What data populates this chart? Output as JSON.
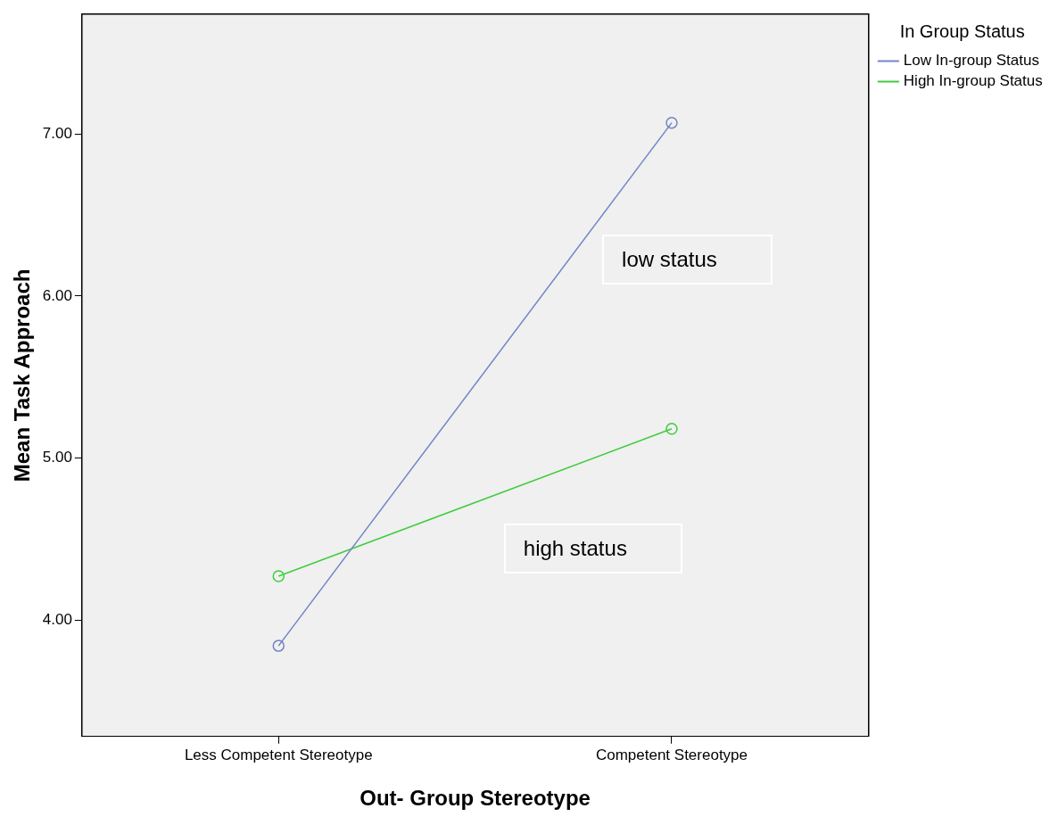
{
  "chart_data": {
    "type": "line",
    "xlabel": "Out- Group Stereotype",
    "ylabel": "Mean Task Approach",
    "legend_title": "In Group Status",
    "categories": [
      "Less Competent Stereotype",
      "Competent Stereotype"
    ],
    "series": [
      {
        "name": "Low In-group Status",
        "color": "#7384c6",
        "values": [
          3.84,
          7.07
        ]
      },
      {
        "name": "High In-group Status",
        "color": "#3fcc3f",
        "values": [
          4.27,
          5.18
        ]
      }
    ],
    "ylim": [
      3.28,
      7.74
    ],
    "yticks": [
      {
        "value": 4,
        "label": "4.00"
      },
      {
        "value": 5,
        "label": "5.00"
      },
      {
        "value": 6,
        "label": "6.00"
      },
      {
        "value": 7,
        "label": "7.00"
      }
    ],
    "grid": false,
    "legend": "top right",
    "marker": "circle",
    "line_style": "solid",
    "annotations": [
      "low status",
      "high status"
    ]
  }
}
